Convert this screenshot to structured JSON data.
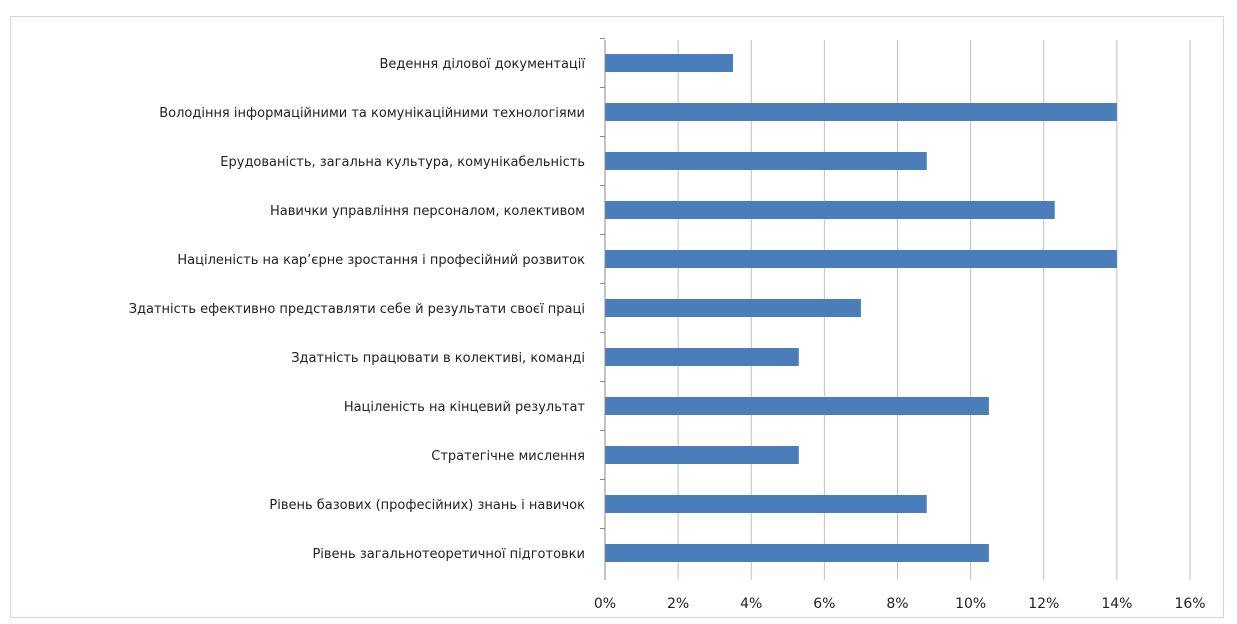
{
  "chart_data": {
    "type": "bar",
    "orientation": "horizontal",
    "categories": [
      "Ведення ділової документації",
      "Володіння інформаційними та комунікаційними технологіями",
      "Ерудованість, загальна культура, комунікабельність",
      "Навички управління персоналом, колективом",
      "Націленість на кар’єрне зростання і професійний розвиток",
      "Здатність ефективно представляти себе й результати своєї праці",
      "Здатність працювати в колективі, команді",
      "Націленість на кінцевий результат",
      "Стратегічне мислення",
      "Рівень базових (професійних) знань і навичок",
      "Рівень загальнотеоретичної підготовки"
    ],
    "values": [
      3.5,
      14.0,
      8.8,
      12.3,
      14.0,
      7.0,
      5.3,
      10.5,
      5.3,
      8.8,
      10.5
    ],
    "xlim": [
      0,
      16
    ],
    "x_ticks": [
      "0%",
      "2%",
      "4%",
      "6%",
      "8%",
      "10%",
      "12%",
      "14%",
      "16%"
    ],
    "tick_values": [
      0,
      2,
      4,
      6,
      8,
      10,
      12,
      14,
      16
    ],
    "grid": "vertical",
    "bar_color": "#4a7ebb",
    "grid_color": "#bfbfbf",
    "title": "",
    "xlabel": "",
    "ylabel": ""
  }
}
